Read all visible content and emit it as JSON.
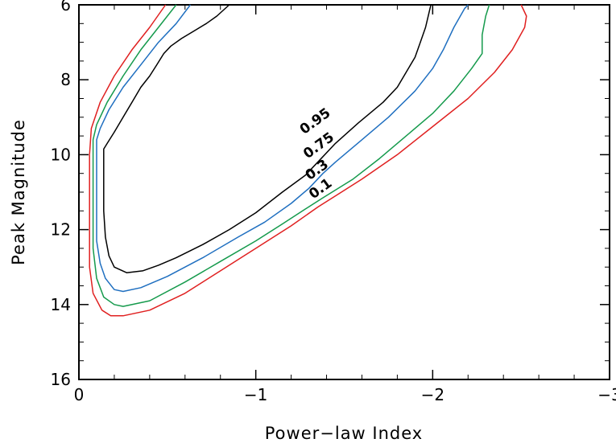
{
  "chart_data": {
    "type": "line",
    "xlabel": "Power−law Index",
    "ylabel": "Peak Magnitude",
    "xlim": [
      0,
      -3
    ],
    "ylim": [
      16,
      6
    ],
    "y_inverted": true,
    "x_ticks": [
      {
        "value": 0,
        "label": "0"
      },
      {
        "value": -1,
        "label": "−1"
      },
      {
        "value": -2,
        "label": "−2"
      },
      {
        "value": -3,
        "label": "−3"
      }
    ],
    "y_ticks": [
      {
        "value": 6,
        "label": "6"
      },
      {
        "value": 8,
        "label": "8"
      },
      {
        "value": 10,
        "label": "10"
      },
      {
        "value": 12,
        "label": "12"
      },
      {
        "value": 14,
        "label": "14"
      },
      {
        "value": 16,
        "label": "16"
      }
    ],
    "grid": false,
    "series": [
      {
        "name": "0.95",
        "color": "#000000",
        "label_at": {
          "x": -1.35,
          "y": 9.2
        },
        "points": [
          [
            -0.85,
            6.0
          ],
          [
            -0.78,
            6.3
          ],
          [
            -0.72,
            6.5
          ],
          [
            -0.65,
            6.7
          ],
          [
            -0.58,
            6.9
          ],
          [
            -0.52,
            7.1
          ],
          [
            -0.48,
            7.3
          ],
          [
            -0.44,
            7.6
          ],
          [
            -0.4,
            7.9
          ],
          [
            -0.35,
            8.2
          ],
          [
            -0.3,
            8.6
          ],
          [
            -0.25,
            9.0
          ],
          [
            -0.2,
            9.4
          ],
          [
            -0.16,
            9.7
          ],
          [
            -0.14,
            9.85
          ],
          [
            -0.14,
            10.5
          ],
          [
            -0.14,
            11.5
          ],
          [
            -0.15,
            12.2
          ],
          [
            -0.17,
            12.7
          ],
          [
            -0.2,
            13.0
          ],
          [
            -0.27,
            13.15
          ],
          [
            -0.36,
            13.1
          ],
          [
            -0.45,
            12.95
          ],
          [
            -0.55,
            12.75
          ],
          [
            -0.7,
            12.4
          ],
          [
            -0.85,
            12.0
          ],
          [
            -1.0,
            11.55
          ],
          [
            -1.15,
            11.0
          ],
          [
            -1.28,
            10.55
          ],
          [
            -1.35,
            10.2
          ],
          [
            -1.45,
            9.7
          ],
          [
            -1.58,
            9.15
          ],
          [
            -1.72,
            8.6
          ],
          [
            -1.8,
            8.2
          ],
          [
            -1.85,
            7.8
          ],
          [
            -1.9,
            7.4
          ],
          [
            -1.93,
            7.0
          ],
          [
            -1.96,
            6.6
          ],
          [
            -1.98,
            6.2
          ],
          [
            -1.99,
            6.0
          ]
        ]
      },
      {
        "name": "0.75",
        "color": "#1f6fc0",
        "label_at": {
          "x": -1.37,
          "y": 9.85
        },
        "points": [
          [
            -0.63,
            6.0
          ],
          [
            -0.55,
            6.5
          ],
          [
            -0.45,
            7.0
          ],
          [
            -0.35,
            7.6
          ],
          [
            -0.25,
            8.2
          ],
          [
            -0.17,
            8.8
          ],
          [
            -0.12,
            9.3
          ],
          [
            -0.1,
            9.6
          ],
          [
            -0.1,
            10.5
          ],
          [
            -0.1,
            11.5
          ],
          [
            -0.1,
            12.3
          ],
          [
            -0.12,
            12.9
          ],
          [
            -0.15,
            13.3
          ],
          [
            -0.2,
            13.6
          ],
          [
            -0.25,
            13.65
          ],
          [
            -0.35,
            13.55
          ],
          [
            -0.5,
            13.25
          ],
          [
            -0.7,
            12.75
          ],
          [
            -0.9,
            12.2
          ],
          [
            -1.05,
            11.8
          ],
          [
            -1.2,
            11.3
          ],
          [
            -1.3,
            10.9
          ],
          [
            -1.38,
            10.5
          ],
          [
            -1.45,
            10.2
          ],
          [
            -1.6,
            9.6
          ],
          [
            -1.75,
            9.0
          ],
          [
            -1.9,
            8.3
          ],
          [
            -2.0,
            7.7
          ],
          [
            -2.06,
            7.2
          ],
          [
            -2.12,
            6.6
          ],
          [
            -2.18,
            6.1
          ],
          [
            -2.2,
            6.0
          ]
        ]
      },
      {
        "name": "0.3",
        "color": "#159a4c",
        "label_at": {
          "x": -1.36,
          "y": 10.5
        },
        "points": [
          [
            -0.55,
            6.0
          ],
          [
            -0.45,
            6.6
          ],
          [
            -0.35,
            7.2
          ],
          [
            -0.25,
            7.9
          ],
          [
            -0.16,
            8.6
          ],
          [
            -0.1,
            9.2
          ],
          [
            -0.08,
            9.6
          ],
          [
            -0.08,
            10.5
          ],
          [
            -0.08,
            11.5
          ],
          [
            -0.08,
            12.5
          ],
          [
            -0.1,
            13.3
          ],
          [
            -0.14,
            13.8
          ],
          [
            -0.2,
            14.0
          ],
          [
            -0.25,
            14.05
          ],
          [
            -0.4,
            13.9
          ],
          [
            -0.6,
            13.4
          ],
          [
            -0.8,
            12.85
          ],
          [
            -1.0,
            12.3
          ],
          [
            -1.15,
            11.85
          ],
          [
            -1.28,
            11.45
          ],
          [
            -1.38,
            11.15
          ],
          [
            -1.55,
            10.65
          ],
          [
            -1.7,
            10.1
          ],
          [
            -1.85,
            9.5
          ],
          [
            -2.0,
            8.9
          ],
          [
            -2.12,
            8.3
          ],
          [
            -2.22,
            7.7
          ],
          [
            -2.28,
            7.3
          ],
          [
            -2.28,
            6.8
          ],
          [
            -2.3,
            6.3
          ],
          [
            -2.32,
            6.0
          ]
        ]
      },
      {
        "name": "0.1",
        "color": "#e02020",
        "label_at": {
          "x": -1.38,
          "y": 11.0
        },
        "points": [
          [
            -0.49,
            6.0
          ],
          [
            -0.4,
            6.6
          ],
          [
            -0.3,
            7.2
          ],
          [
            -0.2,
            7.9
          ],
          [
            -0.12,
            8.6
          ],
          [
            -0.07,
            9.3
          ],
          [
            -0.06,
            10.0
          ],
          [
            -0.06,
            11.0
          ],
          [
            -0.06,
            12.0
          ],
          [
            -0.06,
            13.0
          ],
          [
            -0.08,
            13.7
          ],
          [
            -0.13,
            14.15
          ],
          [
            -0.18,
            14.3
          ],
          [
            -0.25,
            14.3
          ],
          [
            -0.4,
            14.15
          ],
          [
            -0.6,
            13.7
          ],
          [
            -0.8,
            13.1
          ],
          [
            -1.0,
            12.5
          ],
          [
            -1.2,
            11.9
          ],
          [
            -1.35,
            11.4
          ],
          [
            -1.45,
            11.1
          ],
          [
            -1.6,
            10.65
          ],
          [
            -1.8,
            10.0
          ],
          [
            -2.0,
            9.25
          ],
          [
            -2.2,
            8.5
          ],
          [
            -2.35,
            7.8
          ],
          [
            -2.45,
            7.2
          ],
          [
            -2.52,
            6.6
          ],
          [
            -2.53,
            6.3
          ],
          [
            -2.5,
            6.0
          ]
        ]
      }
    ]
  }
}
